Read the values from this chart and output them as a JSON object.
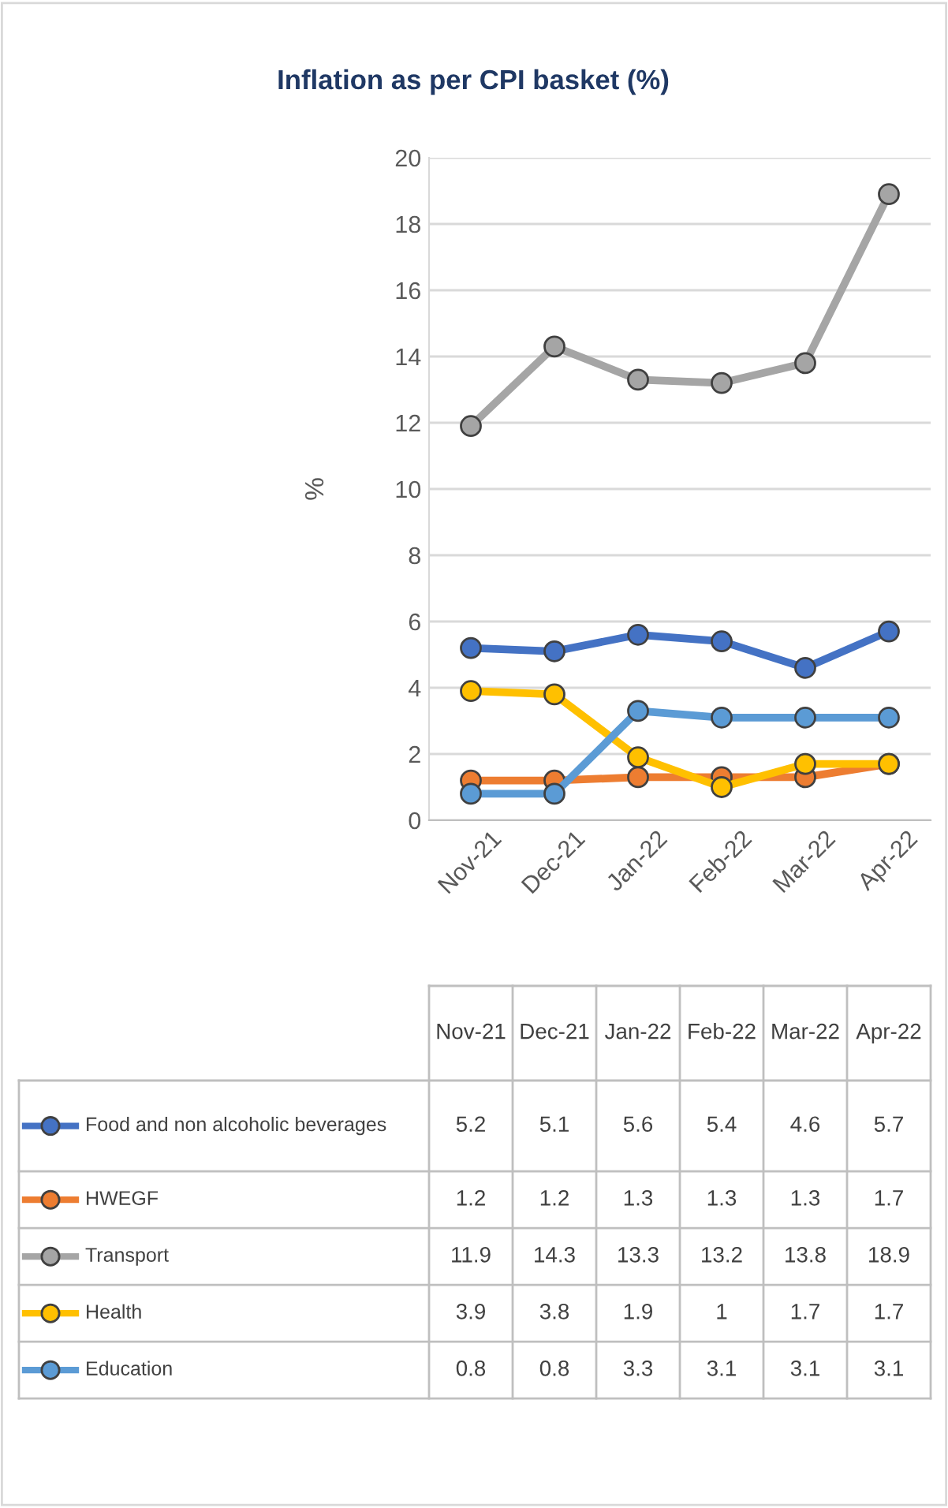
{
  "chart_data": {
    "type": "line",
    "title": "Inflation as per CPI basket (%)",
    "ylabel": "%",
    "categories": [
      "Nov-21",
      "Dec-21",
      "Jan-22",
      "Feb-22",
      "Mar-22",
      "Apr-22"
    ],
    "series": [
      {
        "name": "Food and non alcoholic beverages",
        "color": "#4472c4",
        "values": [
          5.2,
          5.1,
          5.6,
          5.4,
          4.6,
          5.7
        ]
      },
      {
        "name": "HWEGF",
        "color": "#ed7d31",
        "values": [
          1.2,
          1.2,
          1.3,
          1.3,
          1.3,
          1.7
        ]
      },
      {
        "name": "Transport",
        "color": "#a5a5a5",
        "values": [
          11.9,
          14.3,
          13.3,
          13.2,
          13.8,
          18.9
        ]
      },
      {
        "name": "Health",
        "color": "#ffc000",
        "values": [
          3.9,
          3.8,
          1.9,
          1,
          1.7,
          1.7
        ]
      },
      {
        "name": "Education",
        "color": "#5b9bd5",
        "values": [
          0.8,
          0.8,
          3.3,
          3.1,
          3.1,
          3.1
        ]
      }
    ],
    "ylim": [
      0,
      20
    ],
    "yticks": [
      0,
      2,
      4,
      6,
      8,
      10,
      12,
      14,
      16,
      18,
      20
    ],
    "grid": "y",
    "marker": "circle",
    "line_style": "solid",
    "legend": "bottom",
    "data_labels": true
  }
}
